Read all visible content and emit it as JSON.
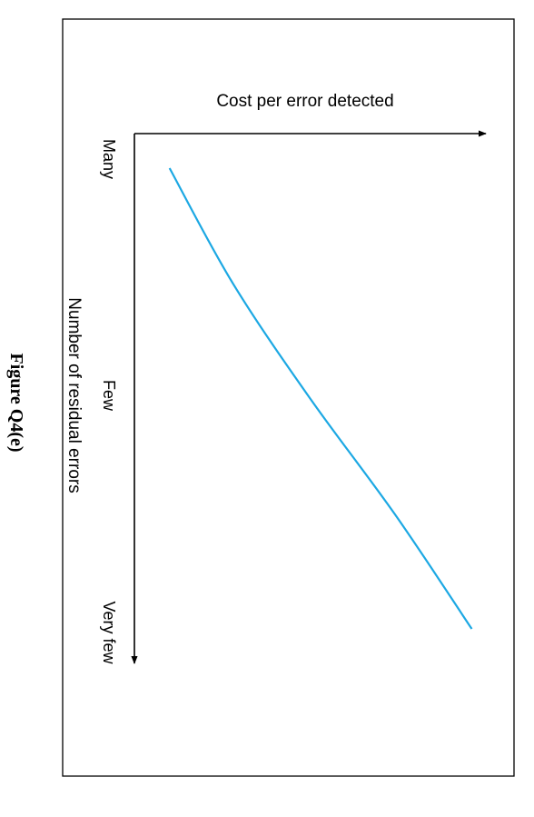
{
  "figure": {
    "caption": "Figure Q4(e)"
  },
  "chart_data": {
    "type": "line",
    "title": "",
    "xlabel": "Number of residual errors",
    "ylabel": "Cost per error detected",
    "x_categories": [
      "Many",
      "Few",
      "Very few"
    ],
    "series": [
      {
        "x": [
          0.0,
          0.25,
          0.5,
          0.75,
          1.0
        ],
        "y": [
          0.1,
          0.28,
          0.5,
          0.74,
          0.96
        ]
      }
    ],
    "grid": false,
    "legend": "none",
    "colors": {
      "curve": "#1ca8e3",
      "axis": "#000000",
      "frame": "#000000"
    }
  }
}
